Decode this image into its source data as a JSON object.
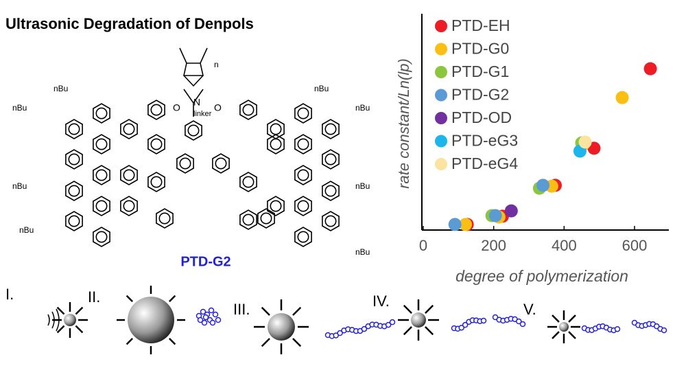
{
  "title": "Ultrasonic Degradation of Denpols",
  "molecule": {
    "name": "PTD-G2",
    "labels": [
      "nBu",
      "nBu",
      "nBu",
      "nBu",
      "nBu",
      "nBu",
      "nBu",
      "nBu",
      "N",
      "O",
      "O",
      "linker",
      "n"
    ]
  },
  "stages": [
    "I.",
    "II.",
    "III.",
    "IV.",
    "V."
  ],
  "chart_data": {
    "type": "scatter",
    "xlabel": "degree of polymerization",
    "ylabel": "rate constant/Ln(lp)",
    "xlim": [
      0,
      700
    ],
    "xticks": [
      0,
      200,
      400,
      600
    ],
    "ylim": [
      0,
      100
    ],
    "legend": "upper left",
    "series": [
      {
        "name": "PTD-EH",
        "color": "#ee1c24",
        "x": [
          125,
          225,
          375,
          485,
          645
        ],
        "values": [
          2.7,
          6.7,
          21.7,
          39.7,
          78.3
        ]
      },
      {
        "name": "PTD-G0",
        "color": "#fbbf14",
        "x": [
          120,
          215,
          365,
          455,
          565
        ],
        "values": [
          2.7,
          6.3,
          21.3,
          41.7,
          64.3
        ]
      },
      {
        "name": "PTD-G1",
        "color": "#8cc63f",
        "x": [
          195,
          330,
          450
        ],
        "values": [
          7,
          20.3,
          42.3
        ]
      },
      {
        "name": "PTD-G2",
        "color": "#5b9bd5",
        "x": [
          90,
          205,
          340
        ],
        "values": [
          2.7,
          7,
          21.7
        ]
      },
      {
        "name": "PTD-OD",
        "color": "#7030a0",
        "x": [
          250
        ],
        "values": [
          9.3
        ]
      },
      {
        "name": "PTD-eG3",
        "color": "#1cb5ec",
        "x": [
          445
        ],
        "values": [
          38.3
        ]
      },
      {
        "name": "PTD-eG4",
        "color": "#fbe3a0",
        "x": [
          460
        ],
        "values": [
          42.7
        ]
      }
    ]
  }
}
